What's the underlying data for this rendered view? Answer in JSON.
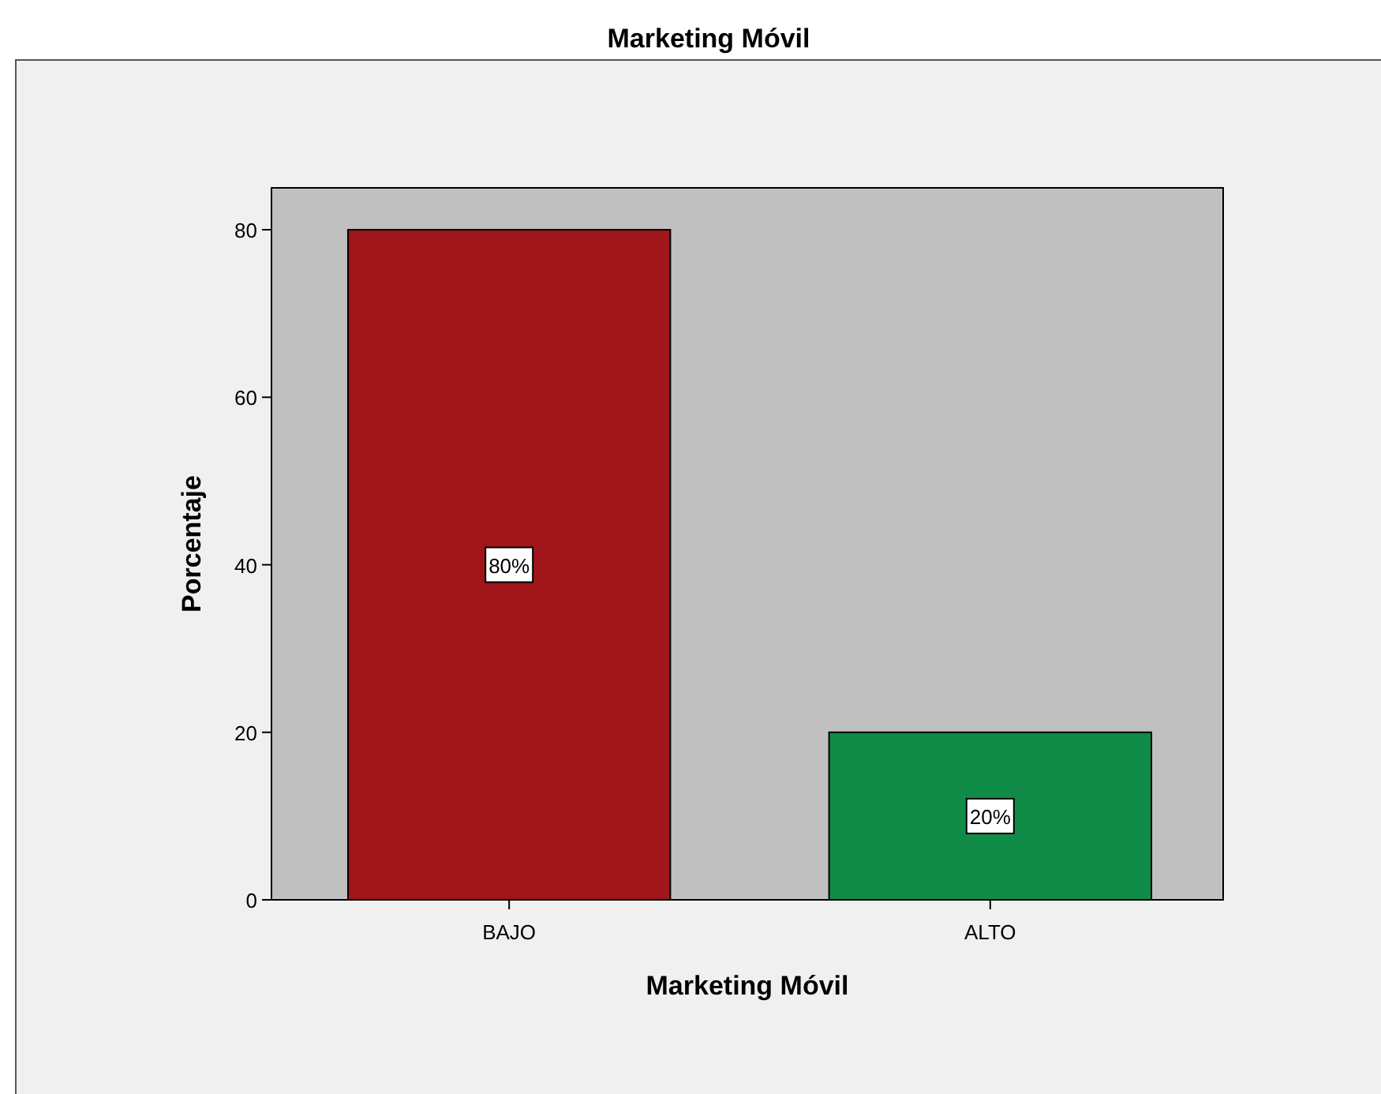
{
  "chart_data": {
    "type": "bar",
    "title": "Marketing Móvil",
    "xlabel": "Marketing Móvil",
    "ylabel": "Porcentaje",
    "categories": [
      "BAJO",
      "ALTO"
    ],
    "values": [
      80,
      20
    ],
    "colors": [
      "#a0161a",
      "#118c48"
    ],
    "value_labels": [
      "80%",
      "20%"
    ],
    "ylim": [
      0,
      85
    ],
    "yticks": [
      0,
      20,
      40,
      60,
      80
    ],
    "grid": false
  }
}
